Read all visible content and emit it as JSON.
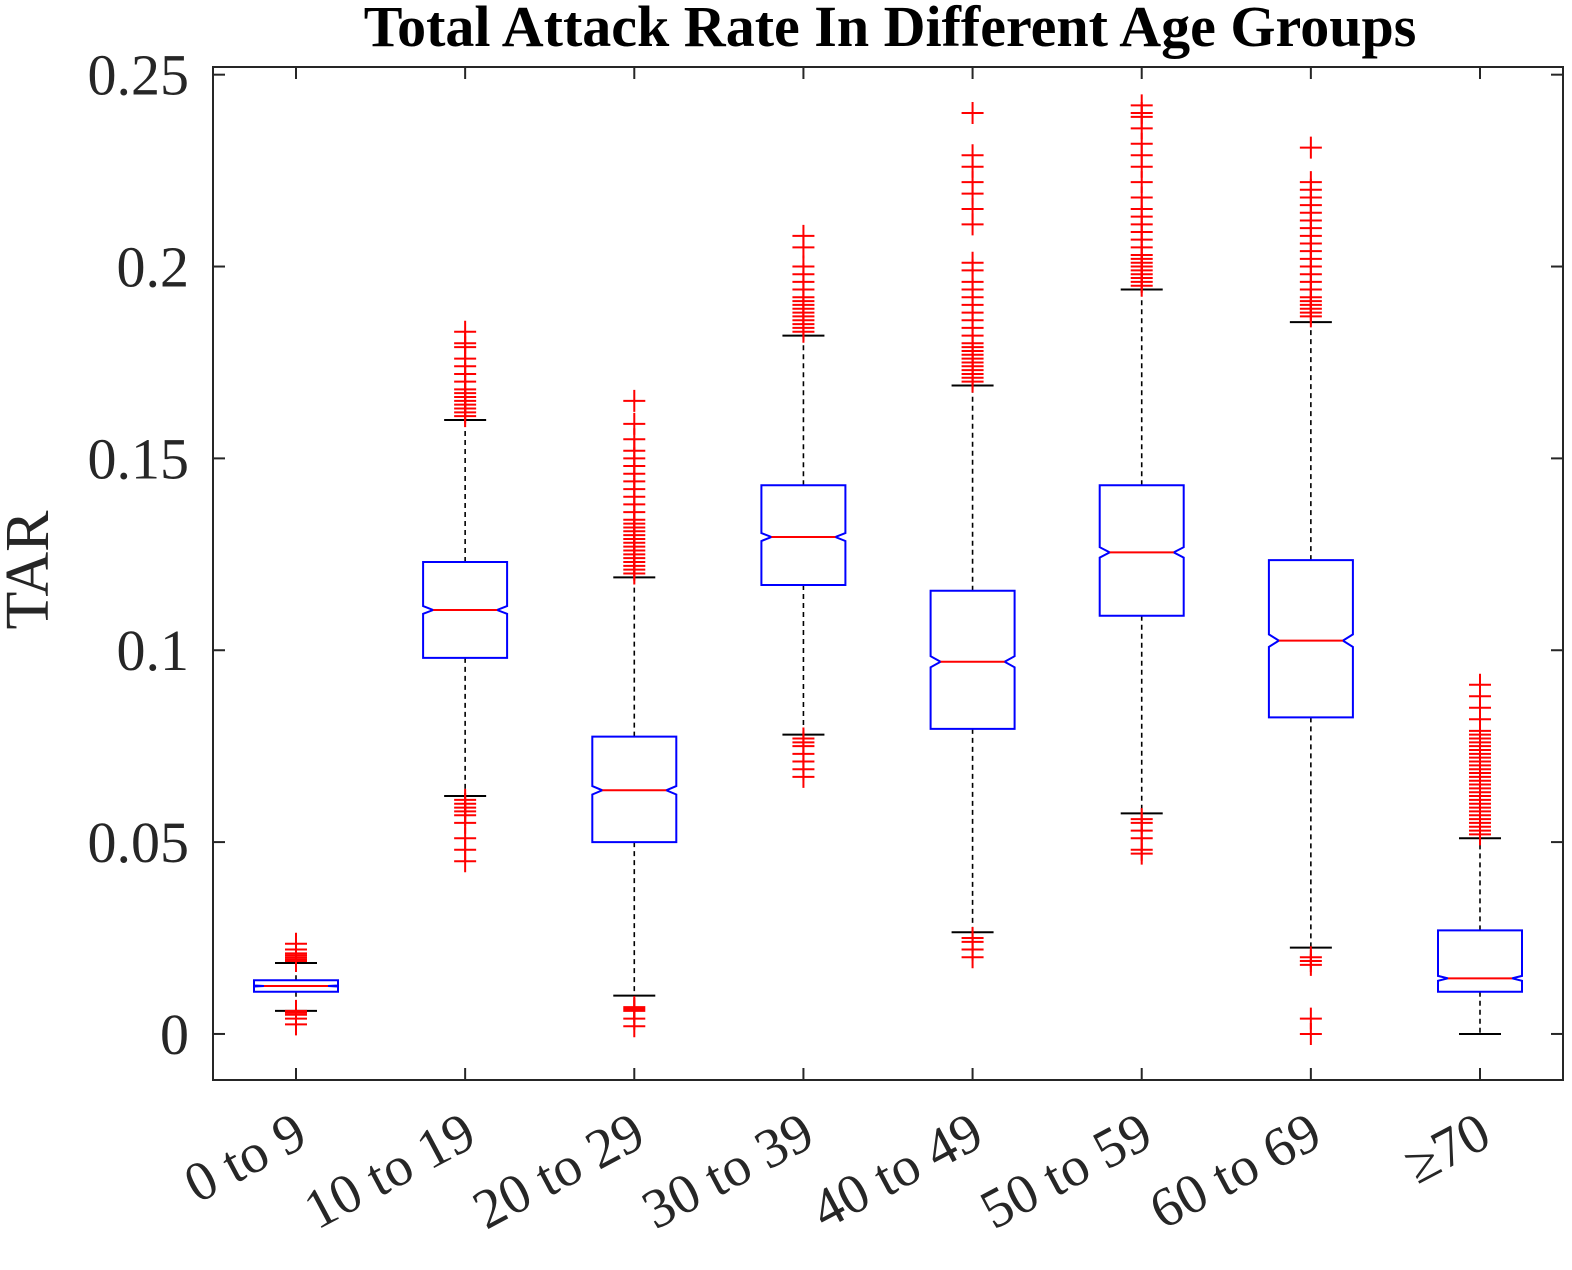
{
  "chart_data": {
    "type": "boxplot",
    "title": "Total Attack Rate In Different Age Groups",
    "xlabel": "",
    "ylabel": "TAR",
    "ylim": [
      -0.012,
      0.252
    ],
    "yticks": [
      0,
      0.05,
      0.1,
      0.15,
      0.2,
      0.25
    ],
    "ytick_labels": [
      "0",
      "0.05",
      "0.1",
      "0.15",
      "0.2",
      "0.25"
    ],
    "categories": [
      "0 to 9",
      "10 to 19",
      "20 to 29",
      "30 to 39",
      "40 to 49",
      "50 to 59",
      "60 to 69",
      "≥70"
    ],
    "notched": true,
    "boxes": [
      {
        "q1": 0.011,
        "median": 0.0125,
        "q3": 0.014,
        "whisker_low": 0.006,
        "whisker_high": 0.0185,
        "outliers": [
          0.0025,
          0.004,
          0.005,
          0.0055,
          0.006,
          0.019,
          0.0195,
          0.02,
          0.0205,
          0.021,
          0.022,
          0.0235
        ]
      },
      {
        "q1": 0.098,
        "median": 0.1105,
        "q3": 0.123,
        "whisker_low": 0.062,
        "whisker_high": 0.16,
        "outliers": [
          0.045,
          0.048,
          0.051,
          0.055,
          0.057,
          0.058,
          0.059,
          0.06,
          0.061,
          0.161,
          0.162,
          0.163,
          0.164,
          0.165,
          0.166,
          0.167,
          0.168,
          0.17,
          0.172,
          0.174,
          0.176,
          0.179,
          0.18,
          0.183
        ]
      },
      {
        "q1": 0.05,
        "median": 0.0635,
        "q3": 0.0775,
        "whisker_low": 0.01,
        "whisker_high": 0.119,
        "outliers": [
          0.002,
          0.004,
          0.006,
          0.0065,
          0.007,
          0.12,
          0.121,
          0.122,
          0.123,
          0.124,
          0.125,
          0.126,
          0.127,
          0.128,
          0.129,
          0.13,
          0.131,
          0.132,
          0.133,
          0.134,
          0.136,
          0.138,
          0.14,
          0.142,
          0.144,
          0.146,
          0.148,
          0.15,
          0.152,
          0.155,
          0.159,
          0.165
        ]
      },
      {
        "q1": 0.117,
        "median": 0.1295,
        "q3": 0.143,
        "whisker_low": 0.078,
        "whisker_high": 0.182,
        "outliers": [
          0.067,
          0.069,
          0.071,
          0.073,
          0.075,
          0.076,
          0.077,
          0.183,
          0.184,
          0.185,
          0.186,
          0.187,
          0.188,
          0.189,
          0.19,
          0.191,
          0.192,
          0.194,
          0.196,
          0.198,
          0.2,
          0.205,
          0.208
        ]
      },
      {
        "q1": 0.0795,
        "median": 0.097,
        "q3": 0.1155,
        "whisker_low": 0.0265,
        "whisker_high": 0.169,
        "outliers": [
          0.02,
          0.022,
          0.024,
          0.025,
          0.17,
          0.171,
          0.172,
          0.173,
          0.174,
          0.175,
          0.176,
          0.177,
          0.178,
          0.179,
          0.18,
          0.182,
          0.184,
          0.186,
          0.188,
          0.19,
          0.192,
          0.194,
          0.196,
          0.199,
          0.201,
          0.211,
          0.215,
          0.219,
          0.222,
          0.226,
          0.229,
          0.24
        ]
      },
      {
        "q1": 0.109,
        "median": 0.1255,
        "q3": 0.143,
        "whisker_low": 0.0575,
        "whisker_high": 0.194,
        "outliers": [
          0.047,
          0.048,
          0.051,
          0.053,
          0.055,
          0.056,
          0.195,
          0.196,
          0.197,
          0.198,
          0.199,
          0.2,
          0.201,
          0.202,
          0.203,
          0.205,
          0.207,
          0.209,
          0.211,
          0.213,
          0.215,
          0.218,
          0.222,
          0.226,
          0.229,
          0.232,
          0.236,
          0.239,
          0.24,
          0.242
        ]
      },
      {
        "q1": 0.0825,
        "median": 0.1025,
        "q3": 0.1235,
        "whisker_low": 0.0225,
        "whisker_high": 0.1855,
        "outliers": [
          0.0,
          0.004,
          0.018,
          0.019,
          0.02,
          0.187,
          0.188,
          0.189,
          0.19,
          0.191,
          0.192,
          0.194,
          0.196,
          0.198,
          0.2,
          0.202,
          0.204,
          0.206,
          0.208,
          0.21,
          0.212,
          0.214,
          0.216,
          0.218,
          0.22,
          0.222,
          0.231
        ]
      },
      {
        "q1": 0.011,
        "median": 0.0145,
        "q3": 0.027,
        "whisker_low": 0.0,
        "whisker_high": 0.051,
        "outliers": [
          0.052,
          0.053,
          0.054,
          0.055,
          0.056,
          0.057,
          0.058,
          0.059,
          0.06,
          0.061,
          0.062,
          0.063,
          0.064,
          0.065,
          0.066,
          0.067,
          0.068,
          0.069,
          0.07,
          0.071,
          0.072,
          0.073,
          0.074,
          0.075,
          0.076,
          0.077,
          0.078,
          0.079,
          0.082,
          0.085,
          0.088,
          0.091
        ]
      }
    ],
    "grid": false,
    "colors": {
      "box": "#0000ff",
      "median": "#ff0000",
      "outlier": "#ff0000",
      "whisker": "#000000",
      "axis": "#262626"
    }
  }
}
